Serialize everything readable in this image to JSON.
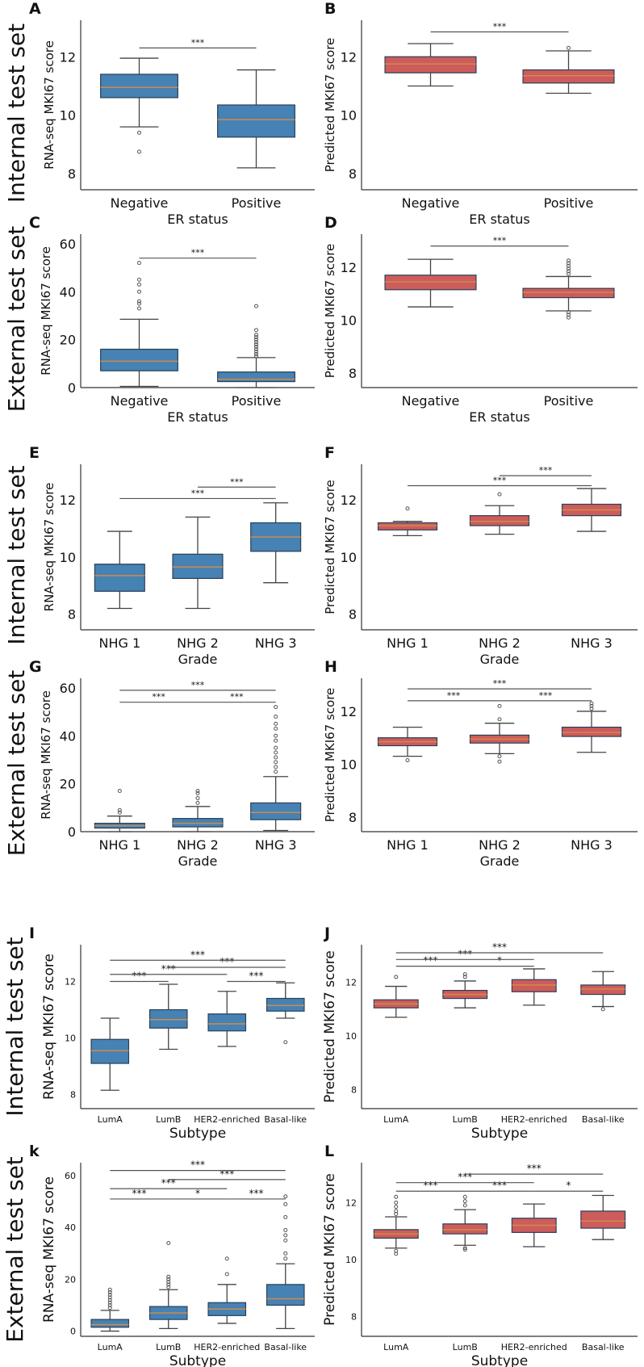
{
  "row_labels": [
    "Internal test set",
    "External test set",
    "Internal test set",
    "External test set",
    "Internal test set",
    "External test set"
  ],
  "colors": {
    "blue": "#4682b4",
    "red": "#cd5c5c",
    "median": "#d08a4a",
    "line": "#444444"
  },
  "chart_data": [
    {
      "type": "box",
      "title": "A",
      "ylabel": "RNA-seq MKI67 score",
      "xlabel": "ER status",
      "categories": [
        "Negative",
        "Positive"
      ],
      "ylim": [
        7.45,
        13.25
      ],
      "yticks": [
        8,
        10,
        12
      ],
      "color": "blue",
      "boxes": [
        {
          "whislo": 9.6,
          "q1": 10.6,
          "med": 10.95,
          "q3": 11.4,
          "whishi": 11.95,
          "fliers": [
            9.4,
            8.75
          ]
        },
        {
          "whislo": 8.2,
          "q1": 9.25,
          "med": 9.85,
          "q3": 10.35,
          "whishi": 11.55,
          "fliers": []
        }
      ],
      "brackets": [
        {
          "from": 0,
          "to": 1,
          "y": 12.3,
          "label": "***"
        }
      ]
    },
    {
      "type": "box",
      "title": "B",
      "ylabel": "Predicted MKI67 score",
      "xlabel": "ER status",
      "categories": [
        "Negative",
        "Positive"
      ],
      "ylim": [
        7.45,
        13.25
      ],
      "yticks": [
        8,
        10,
        12
      ],
      "color": "red",
      "boxes": [
        {
          "whislo": 11.0,
          "q1": 11.45,
          "med": 11.75,
          "q3": 12.0,
          "whishi": 12.45,
          "fliers": []
        },
        {
          "whislo": 10.75,
          "q1": 11.1,
          "med": 11.35,
          "q3": 11.55,
          "whishi": 12.2,
          "fliers": [
            12.3
          ]
        }
      ],
      "brackets": [
        {
          "from": 0,
          "to": 1,
          "y": 12.85,
          "label": "***"
        }
      ]
    },
    {
      "type": "box",
      "title": "C",
      "ylabel": "RNA-seq MKI67 score",
      "xlabel": "ER status",
      "categories": [
        "Negative",
        "Positive"
      ],
      "ylim": [
        0,
        64
      ],
      "yticks": [
        0,
        20,
        40,
        60
      ],
      "color": "blue",
      "boxes": [
        {
          "whislo": 0.5,
          "q1": 7,
          "med": 11,
          "q3": 16,
          "whishi": 28.5,
          "fliers": [
            33,
            35,
            36,
            40,
            43,
            45,
            52
          ]
        },
        {
          "whislo": 0,
          "q1": 2.5,
          "med": 3.5,
          "q3": 6.5,
          "whishi": 12.5,
          "fliers": [
            13,
            14,
            15,
            16,
            17,
            18,
            19,
            20,
            21,
            22,
            24,
            34
          ]
        }
      ],
      "brackets": [
        {
          "from": 0,
          "to": 1,
          "y": 54,
          "label": "***"
        }
      ]
    },
    {
      "type": "box",
      "title": "D",
      "ylabel": "Predicted MKI67 score",
      "xlabel": "ER status",
      "categories": [
        "Negative",
        "Positive"
      ],
      "ylim": [
        7.45,
        13.25
      ],
      "yticks": [
        8,
        10,
        12
      ],
      "color": "red",
      "boxes": [
        {
          "whislo": 10.5,
          "q1": 11.15,
          "med": 11.45,
          "q3": 11.7,
          "whishi": 12.3,
          "fliers": []
        },
        {
          "whislo": 10.35,
          "q1": 10.85,
          "med": 11.05,
          "q3": 11.2,
          "whishi": 11.65,
          "fliers": [
            11.75,
            11.85,
            11.95,
            12.05,
            12.15,
            12.25,
            10.3,
            10.2,
            10.1
          ]
        }
      ],
      "brackets": [
        {
          "from": 0,
          "to": 1,
          "y": 12.8,
          "label": "***"
        }
      ]
    },
    {
      "type": "box",
      "title": "E",
      "ylabel": "RNA-seq MKI67 score",
      "xlabel": "Grade",
      "categories": [
        "NHG 1",
        "NHG 2",
        "NHG 3"
      ],
      "ylim": [
        7.45,
        13.25
      ],
      "yticks": [
        8,
        10,
        12
      ],
      "color": "blue",
      "boxes": [
        {
          "whislo": 8.2,
          "q1": 8.8,
          "med": 9.35,
          "q3": 9.75,
          "whishi": 10.9,
          "fliers": []
        },
        {
          "whislo": 8.2,
          "q1": 9.25,
          "med": 9.65,
          "q3": 10.1,
          "whishi": 11.4,
          "fliers": []
        },
        {
          "whislo": 9.1,
          "q1": 10.2,
          "med": 10.7,
          "q3": 11.2,
          "whishi": 11.9,
          "fliers": []
        }
      ],
      "brackets": [
        {
          "from": 0,
          "to": 2,
          "y": 12.05,
          "label": "***"
        },
        {
          "from": 1,
          "to": 2,
          "y": 12.45,
          "label": "***"
        }
      ]
    },
    {
      "type": "box",
      "title": "F",
      "ylabel": "Predicted MKI67 score",
      "xlabel": "Grade",
      "categories": [
        "NHG 1",
        "NHG 2",
        "NHG 3"
      ],
      "ylim": [
        7.45,
        13.25
      ],
      "yticks": [
        8,
        10,
        12
      ],
      "color": "red",
      "boxes": [
        {
          "whislo": 10.75,
          "q1": 10.95,
          "med": 11.1,
          "q3": 11.2,
          "whishi": 11.25,
          "fliers": [
            11.7
          ]
        },
        {
          "whislo": 10.8,
          "q1": 11.1,
          "med": 11.25,
          "q3": 11.45,
          "whishi": 11.8,
          "fliers": [
            12.2
          ]
        },
        {
          "whislo": 10.9,
          "q1": 11.45,
          "med": 11.65,
          "q3": 11.85,
          "whishi": 12.4,
          "fliers": []
        }
      ],
      "brackets": [
        {
          "from": 0,
          "to": 2,
          "y": 12.5,
          "label": "***"
        },
        {
          "from": 1,
          "to": 2,
          "y": 12.85,
          "label": "***"
        }
      ]
    },
    {
      "type": "box",
      "title": "G",
      "ylabel": "RNA-seq MKI67 score",
      "xlabel": "Grade",
      "categories": [
        "NHG 1",
        "NHG 2",
        "NHG 3"
      ],
      "ylim": [
        0,
        64
      ],
      "yticks": [
        0,
        20,
        40,
        60
      ],
      "color": "blue",
      "boxes": [
        {
          "whislo": 0,
          "q1": 1.5,
          "med": 2.5,
          "q3": 3.5,
          "whishi": 6.5,
          "fliers": [
            8,
            9,
            17
          ]
        },
        {
          "whislo": 0,
          "q1": 2,
          "med": 3.5,
          "q3": 5.5,
          "whishi": 10.5,
          "fliers": [
            12,
            14,
            16,
            17
          ]
        },
        {
          "whislo": 0.5,
          "q1": 5,
          "med": 8,
          "q3": 12,
          "whishi": 23,
          "fliers": [
            25,
            27,
            29,
            31,
            33,
            35,
            38,
            40,
            43,
            45,
            48,
            52
          ]
        }
      ],
      "brackets": [
        {
          "from": 0,
          "to": 1,
          "y": 54,
          "label": "***"
        },
        {
          "from": 1,
          "to": 2,
          "y": 54,
          "label": "***"
        },
        {
          "from": 0,
          "to": 2,
          "y": 59,
          "label": "***"
        }
      ]
    },
    {
      "type": "box",
      "title": "H",
      "ylabel": "Predicted MKI67 score",
      "xlabel": "Grade",
      "categories": [
        "NHG 1",
        "NHG 2",
        "NHG 3"
      ],
      "ylim": [
        7.45,
        13.25
      ],
      "yticks": [
        8,
        10,
        12
      ],
      "color": "red",
      "boxes": [
        {
          "whislo": 10.3,
          "q1": 10.7,
          "med": 10.85,
          "q3": 11.0,
          "whishi": 11.4,
          "fliers": [
            10.15
          ]
        },
        {
          "whislo": 10.4,
          "q1": 10.8,
          "med": 10.95,
          "q3": 11.1,
          "whishi": 11.55,
          "fliers": [
            11.7,
            12.2,
            10.3,
            10.1
          ]
        },
        {
          "whislo": 10.45,
          "q1": 11.05,
          "med": 11.2,
          "q3": 11.4,
          "whishi": 12.0,
          "fliers": [
            12.1,
            12.2,
            12.3
          ]
        }
      ],
      "brackets": [
        {
          "from": 0,
          "to": 1,
          "y": 12.4,
          "label": "***"
        },
        {
          "from": 1,
          "to": 2,
          "y": 12.4,
          "label": "***"
        },
        {
          "from": 0,
          "to": 2,
          "y": 12.85,
          "label": "***"
        }
      ]
    },
    {
      "type": "box",
      "title": "I",
      "ylabel": "RNA-seq MKI67 score",
      "xlabel": "Subtype",
      "categories": [
        "LumA",
        "LumB",
        "HER2-enriched",
        "Basal-like"
      ],
      "ylim": [
        7.5,
        13.3
      ],
      "yticks": [
        8,
        10,
        12
      ],
      "color": "blue",
      "boxes": [
        {
          "whislo": 8.15,
          "q1": 9.1,
          "med": 9.55,
          "q3": 9.95,
          "whishi": 10.7,
          "fliers": []
        },
        {
          "whislo": 9.6,
          "q1": 10.35,
          "med": 10.65,
          "q3": 11.0,
          "whishi": 11.9,
          "fliers": []
        },
        {
          "whislo": 9.7,
          "q1": 10.25,
          "med": 10.5,
          "q3": 10.85,
          "whishi": 11.65,
          "fliers": []
        },
        {
          "whislo": 10.7,
          "q1": 10.95,
          "med": 11.15,
          "q3": 11.4,
          "whishi": 11.95,
          "fliers": [
            9.85
          ]
        }
      ],
      "brackets": [
        {
          "from": 0,
          "to": 1,
          "y": 12.0,
          "label": "***"
        },
        {
          "from": 2,
          "to": 3,
          "y": 12.0,
          "label": "***"
        },
        {
          "from": 0,
          "to": 2,
          "y": 12.25,
          "label": "***"
        },
        {
          "from": 1,
          "to": 3,
          "y": 12.5,
          "label": "***"
        },
        {
          "from": 0,
          "to": 3,
          "y": 12.75,
          "label": "***"
        }
      ]
    },
    {
      "type": "box",
      "title": "J",
      "ylabel": "Predicted MKI67 score",
      "xlabel": "Subtype",
      "categories": [
        "LumA",
        "LumB",
        "HER2-enriched",
        "Basal-like"
      ],
      "ylim": [
        7.3,
        13.4
      ],
      "yticks": [
        8,
        10,
        12
      ],
      "color": "red",
      "boxes": [
        {
          "whislo": 10.7,
          "q1": 11.05,
          "med": 11.2,
          "q3": 11.35,
          "whishi": 11.85,
          "fliers": [
            12.2
          ]
        },
        {
          "whislo": 11.05,
          "q1": 11.4,
          "med": 11.55,
          "q3": 11.7,
          "whishi": 12.05,
          "fliers": [
            12.2,
            12.3
          ]
        },
        {
          "whislo": 11.15,
          "q1": 11.65,
          "med": 11.9,
          "q3": 12.1,
          "whishi": 12.5,
          "fliers": []
        },
        {
          "whislo": 11.1,
          "q1": 11.55,
          "med": 11.75,
          "q3": 11.9,
          "whishi": 12.4,
          "fliers": [
            11.0
          ]
        }
      ],
      "brackets": [
        {
          "from": 0,
          "to": 1,
          "y": 12.6,
          "label": "***"
        },
        {
          "from": 1,
          "to": 2,
          "y": 12.6,
          "label": "*"
        },
        {
          "from": 0,
          "to": 2,
          "y": 12.85,
          "label": "***"
        },
        {
          "from": 0,
          "to": 3,
          "y": 13.1,
          "label": "***"
        }
      ]
    },
    {
      "type": "box",
      "title": "k",
      "ylabel": "RNA-seq MKI67 score",
      "xlabel": "Subtype",
      "categories": [
        "LumA",
        "LumB",
        "HER2-enriched",
        "Basal-like"
      ],
      "ylim": [
        -2,
        65
      ],
      "yticks": [
        0,
        20,
        40,
        60
      ],
      "color": "blue",
      "boxes": [
        {
          "whislo": 0,
          "q1": 1.5,
          "med": 2.5,
          "q3": 4.5,
          "whishi": 8,
          "fliers": [
            9,
            10,
            11,
            12,
            13,
            14,
            15,
            16
          ]
        },
        {
          "whislo": 1,
          "q1": 4.5,
          "med": 7,
          "q3": 9.5,
          "whishi": 16,
          "fliers": [
            17,
            18,
            19,
            20,
            21,
            34
          ]
        },
        {
          "whislo": 3,
          "q1": 6,
          "med": 8.5,
          "q3": 11,
          "whishi": 18,
          "fliers": [
            22,
            28
          ]
        },
        {
          "whislo": 1,
          "q1": 10,
          "med": 12.5,
          "q3": 18,
          "whishi": 26,
          "fliers": [
            28,
            30,
            35,
            37,
            39,
            44,
            49,
            52
          ]
        }
      ],
      "brackets": [
        {
          "from": 0,
          "to": 1,
          "y": 51,
          "label": "***"
        },
        {
          "from": 1,
          "to": 2,
          "y": 51,
          "label": "*"
        },
        {
          "from": 2,
          "to": 3,
          "y": 51,
          "label": "***"
        },
        {
          "from": 0,
          "to": 2,
          "y": 55,
          "label": "***"
        },
        {
          "from": 1,
          "to": 3,
          "y": 58.5,
          "label": "***"
        },
        {
          "from": 0,
          "to": 3,
          "y": 62,
          "label": "***"
        }
      ]
    },
    {
      "type": "box",
      "title": "L",
      "ylabel": "Predicted MKI67 score",
      "xlabel": "Subtype",
      "categories": [
        "LumA",
        "LumB",
        "HER2-enriched",
        "Basal-like"
      ],
      "ylim": [
        7.3,
        13.4
      ],
      "yticks": [
        8,
        10,
        12
      ],
      "color": "red",
      "boxes": [
        {
          "whislo": 10.4,
          "q1": 10.75,
          "med": 10.9,
          "q3": 11.05,
          "whishi": 11.5,
          "fliers": [
            11.6,
            11.7,
            11.85,
            12.0,
            12.2,
            10.3,
            10.2
          ]
        },
        {
          "whislo": 10.5,
          "q1": 10.9,
          "med": 11.05,
          "q3": 11.25,
          "whishi": 11.75,
          "fliers": [
            11.9,
            12.05,
            12.2,
            10.4,
            10.35
          ]
        },
        {
          "whislo": 10.45,
          "q1": 10.95,
          "med": 11.2,
          "q3": 11.45,
          "whishi": 11.95,
          "fliers": []
        },
        {
          "whislo": 10.7,
          "q1": 11.1,
          "med": 11.35,
          "q3": 11.7,
          "whishi": 12.25,
          "fliers": []
        }
      ],
      "brackets": [
        {
          "from": 0,
          "to": 1,
          "y": 12.4,
          "label": "***"
        },
        {
          "from": 1,
          "to": 2,
          "y": 12.4,
          "label": "***"
        },
        {
          "from": 2,
          "to": 3,
          "y": 12.4,
          "label": "*"
        },
        {
          "from": 0,
          "to": 2,
          "y": 12.7,
          "label": "***"
        },
        {
          "from": 1,
          "to": 3,
          "y": 13.0,
          "label": "***"
        }
      ]
    }
  ]
}
